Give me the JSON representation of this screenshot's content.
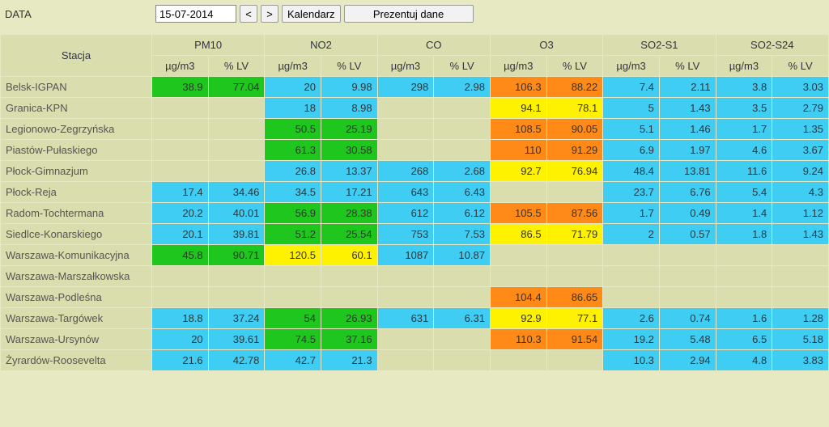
{
  "toolbar": {
    "label": "DATA",
    "date": "15-07-2014",
    "prev": "<",
    "next": ">",
    "calendar": "Kalendarz",
    "present": "Prezentuj dane"
  },
  "header": {
    "station": "Stacja",
    "ug": "µg/m3",
    "lv": "% LV"
  },
  "pollutants": [
    "PM10",
    "NO2",
    "CO",
    "O3",
    "SO2-S1",
    "SO2-S24"
  ],
  "colors": {
    "empty": "#daddad",
    "cyan": "#3fcdf4",
    "green": "#1ec61e",
    "yellow": "#fff200",
    "orange": "#ff8a17",
    "page_bg": "#e7e9c2"
  },
  "stations": [
    {
      "name": "Belsk-IGPAN",
      "cells": [
        {
          "v": "38.9",
          "c": "green"
        },
        {
          "v": "77.04",
          "c": "green"
        },
        {
          "v": "20",
          "c": "cyan"
        },
        {
          "v": "9.98",
          "c": "cyan"
        },
        {
          "v": "298",
          "c": "cyan"
        },
        {
          "v": "2.98",
          "c": "cyan"
        },
        {
          "v": "106.3",
          "c": "orange"
        },
        {
          "v": "88.22",
          "c": "orange"
        },
        {
          "v": "7.4",
          "c": "cyan"
        },
        {
          "v": "2.11",
          "c": "cyan"
        },
        {
          "v": "3.8",
          "c": "cyan"
        },
        {
          "v": "3.03",
          "c": "cyan"
        }
      ]
    },
    {
      "name": "Granica-KPN",
      "cells": [
        {
          "v": "",
          "c": "empty"
        },
        {
          "v": "",
          "c": "empty"
        },
        {
          "v": "18",
          "c": "cyan"
        },
        {
          "v": "8.98",
          "c": "cyan"
        },
        {
          "v": "",
          "c": "empty"
        },
        {
          "v": "",
          "c": "empty"
        },
        {
          "v": "94.1",
          "c": "yellow"
        },
        {
          "v": "78.1",
          "c": "yellow"
        },
        {
          "v": "5",
          "c": "cyan"
        },
        {
          "v": "1.43",
          "c": "cyan"
        },
        {
          "v": "3.5",
          "c": "cyan"
        },
        {
          "v": "2.79",
          "c": "cyan"
        }
      ]
    },
    {
      "name": "Legionowo-Zegrzyńska",
      "cells": [
        {
          "v": "",
          "c": "empty"
        },
        {
          "v": "",
          "c": "empty"
        },
        {
          "v": "50.5",
          "c": "green"
        },
        {
          "v": "25.19",
          "c": "green"
        },
        {
          "v": "",
          "c": "empty"
        },
        {
          "v": "",
          "c": "empty"
        },
        {
          "v": "108.5",
          "c": "orange"
        },
        {
          "v": "90.05",
          "c": "orange"
        },
        {
          "v": "5.1",
          "c": "cyan"
        },
        {
          "v": "1.46",
          "c": "cyan"
        },
        {
          "v": "1.7",
          "c": "cyan"
        },
        {
          "v": "1.35",
          "c": "cyan"
        }
      ]
    },
    {
      "name": "Piastów-Pułaskiego",
      "cells": [
        {
          "v": "",
          "c": "empty"
        },
        {
          "v": "",
          "c": "empty"
        },
        {
          "v": "61.3",
          "c": "green"
        },
        {
          "v": "30.58",
          "c": "green"
        },
        {
          "v": "",
          "c": "empty"
        },
        {
          "v": "",
          "c": "empty"
        },
        {
          "v": "110",
          "c": "orange"
        },
        {
          "v": "91.29",
          "c": "orange"
        },
        {
          "v": "6.9",
          "c": "cyan"
        },
        {
          "v": "1.97",
          "c": "cyan"
        },
        {
          "v": "4.6",
          "c": "cyan"
        },
        {
          "v": "3.67",
          "c": "cyan"
        }
      ]
    },
    {
      "name": "Płock-Gimnazjum",
      "cells": [
        {
          "v": "",
          "c": "empty"
        },
        {
          "v": "",
          "c": "empty"
        },
        {
          "v": "26.8",
          "c": "cyan"
        },
        {
          "v": "13.37",
          "c": "cyan"
        },
        {
          "v": "268",
          "c": "cyan"
        },
        {
          "v": "2.68",
          "c": "cyan"
        },
        {
          "v": "92.7",
          "c": "yellow"
        },
        {
          "v": "76.94",
          "c": "yellow"
        },
        {
          "v": "48.4",
          "c": "cyan"
        },
        {
          "v": "13.81",
          "c": "cyan"
        },
        {
          "v": "11.6",
          "c": "cyan"
        },
        {
          "v": "9.24",
          "c": "cyan"
        }
      ]
    },
    {
      "name": "Płock-Reja",
      "cells": [
        {
          "v": "17.4",
          "c": "cyan"
        },
        {
          "v": "34.46",
          "c": "cyan"
        },
        {
          "v": "34.5",
          "c": "cyan"
        },
        {
          "v": "17.21",
          "c": "cyan"
        },
        {
          "v": "643",
          "c": "cyan"
        },
        {
          "v": "6.43",
          "c": "cyan"
        },
        {
          "v": "",
          "c": "empty"
        },
        {
          "v": "",
          "c": "empty"
        },
        {
          "v": "23.7",
          "c": "cyan"
        },
        {
          "v": "6.76",
          "c": "cyan"
        },
        {
          "v": "5.4",
          "c": "cyan"
        },
        {
          "v": "4.3",
          "c": "cyan"
        }
      ]
    },
    {
      "name": "Radom-Tochtermana",
      "cells": [
        {
          "v": "20.2",
          "c": "cyan"
        },
        {
          "v": "40.01",
          "c": "cyan"
        },
        {
          "v": "56.9",
          "c": "green"
        },
        {
          "v": "28.38",
          "c": "green"
        },
        {
          "v": "612",
          "c": "cyan"
        },
        {
          "v": "6.12",
          "c": "cyan"
        },
        {
          "v": "105.5",
          "c": "orange"
        },
        {
          "v": "87.56",
          "c": "orange"
        },
        {
          "v": "1.7",
          "c": "cyan"
        },
        {
          "v": "0.49",
          "c": "cyan"
        },
        {
          "v": "1.4",
          "c": "cyan"
        },
        {
          "v": "1.12",
          "c": "cyan"
        }
      ]
    },
    {
      "name": "Siedlce-Konarskiego",
      "cells": [
        {
          "v": "20.1",
          "c": "cyan"
        },
        {
          "v": "39.81",
          "c": "cyan"
        },
        {
          "v": "51.2",
          "c": "green"
        },
        {
          "v": "25.54",
          "c": "green"
        },
        {
          "v": "753",
          "c": "cyan"
        },
        {
          "v": "7.53",
          "c": "cyan"
        },
        {
          "v": "86.5",
          "c": "yellow"
        },
        {
          "v": "71.79",
          "c": "yellow"
        },
        {
          "v": "2",
          "c": "cyan"
        },
        {
          "v": "0.57",
          "c": "cyan"
        },
        {
          "v": "1.8",
          "c": "cyan"
        },
        {
          "v": "1.43",
          "c": "cyan"
        }
      ]
    },
    {
      "name": "Warszawa-Komunikacyjna",
      "cells": [
        {
          "v": "45.8",
          "c": "green"
        },
        {
          "v": "90.71",
          "c": "green"
        },
        {
          "v": "120.5",
          "c": "yellow"
        },
        {
          "v": "60.1",
          "c": "yellow"
        },
        {
          "v": "1087",
          "c": "cyan"
        },
        {
          "v": "10.87",
          "c": "cyan"
        },
        {
          "v": "",
          "c": "empty"
        },
        {
          "v": "",
          "c": "empty"
        },
        {
          "v": "",
          "c": "empty"
        },
        {
          "v": "",
          "c": "empty"
        },
        {
          "v": "",
          "c": "empty"
        },
        {
          "v": "",
          "c": "empty"
        }
      ]
    },
    {
      "name": "Warszawa-Marszałkowska",
      "cells": [
        {
          "v": "",
          "c": "empty"
        },
        {
          "v": "",
          "c": "empty"
        },
        {
          "v": "",
          "c": "empty"
        },
        {
          "v": "",
          "c": "empty"
        },
        {
          "v": "",
          "c": "empty"
        },
        {
          "v": "",
          "c": "empty"
        },
        {
          "v": "",
          "c": "empty"
        },
        {
          "v": "",
          "c": "empty"
        },
        {
          "v": "",
          "c": "empty"
        },
        {
          "v": "",
          "c": "empty"
        },
        {
          "v": "",
          "c": "empty"
        },
        {
          "v": "",
          "c": "empty"
        }
      ]
    },
    {
      "name": "Warszawa-Podleśna",
      "cells": [
        {
          "v": "",
          "c": "empty"
        },
        {
          "v": "",
          "c": "empty"
        },
        {
          "v": "",
          "c": "empty"
        },
        {
          "v": "",
          "c": "empty"
        },
        {
          "v": "",
          "c": "empty"
        },
        {
          "v": "",
          "c": "empty"
        },
        {
          "v": "104.4",
          "c": "orange"
        },
        {
          "v": "86.65",
          "c": "orange"
        },
        {
          "v": "",
          "c": "empty"
        },
        {
          "v": "",
          "c": "empty"
        },
        {
          "v": "",
          "c": "empty"
        },
        {
          "v": "",
          "c": "empty"
        }
      ]
    },
    {
      "name": "Warszawa-Targówek",
      "cells": [
        {
          "v": "18.8",
          "c": "cyan"
        },
        {
          "v": "37.24",
          "c": "cyan"
        },
        {
          "v": "54",
          "c": "green"
        },
        {
          "v": "26.93",
          "c": "green"
        },
        {
          "v": "631",
          "c": "cyan"
        },
        {
          "v": "6.31",
          "c": "cyan"
        },
        {
          "v": "92.9",
          "c": "yellow"
        },
        {
          "v": "77.1",
          "c": "yellow"
        },
        {
          "v": "2.6",
          "c": "cyan"
        },
        {
          "v": "0.74",
          "c": "cyan"
        },
        {
          "v": "1.6",
          "c": "cyan"
        },
        {
          "v": "1.28",
          "c": "cyan"
        }
      ]
    },
    {
      "name": "Warszawa-Ursynów",
      "cells": [
        {
          "v": "20",
          "c": "cyan"
        },
        {
          "v": "39.61",
          "c": "cyan"
        },
        {
          "v": "74.5",
          "c": "green"
        },
        {
          "v": "37.16",
          "c": "green"
        },
        {
          "v": "",
          "c": "empty"
        },
        {
          "v": "",
          "c": "empty"
        },
        {
          "v": "110.3",
          "c": "orange"
        },
        {
          "v": "91.54",
          "c": "orange"
        },
        {
          "v": "19.2",
          "c": "cyan"
        },
        {
          "v": "5.48",
          "c": "cyan"
        },
        {
          "v": "6.5",
          "c": "cyan"
        },
        {
          "v": "5.18",
          "c": "cyan"
        }
      ]
    },
    {
      "name": "Żyrardów-Roosevelta",
      "cells": [
        {
          "v": "21.6",
          "c": "cyan"
        },
        {
          "v": "42.78",
          "c": "cyan"
        },
        {
          "v": "42.7",
          "c": "cyan"
        },
        {
          "v": "21.3",
          "c": "cyan"
        },
        {
          "v": "",
          "c": "empty"
        },
        {
          "v": "",
          "c": "empty"
        },
        {
          "v": "",
          "c": "empty"
        },
        {
          "v": "",
          "c": "empty"
        },
        {
          "v": "10.3",
          "c": "cyan"
        },
        {
          "v": "2.94",
          "c": "cyan"
        },
        {
          "v": "4.8",
          "c": "cyan"
        },
        {
          "v": "3.83",
          "c": "cyan"
        }
      ]
    }
  ]
}
